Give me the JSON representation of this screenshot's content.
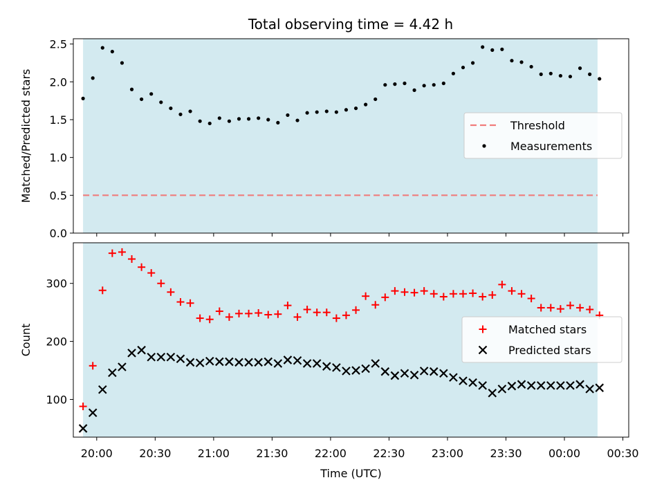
{
  "chart_data": {
    "type": "scatter",
    "title": "Total observing time = 4.42 h",
    "xlabel": "Time (UTC)",
    "x_ticks": [
      "20:00",
      "20:30",
      "21:00",
      "21:30",
      "22:00",
      "22:30",
      "23:00",
      "23:30",
      "00:00",
      "00:30"
    ],
    "xlim": [
      "19:48",
      "00:33"
    ],
    "observing_window": [
      "19:53",
      "00:17"
    ],
    "colors": {
      "observing_window": "#d3eaf0",
      "threshold": "#f07c7c",
      "measurements": "#000000",
      "matched": "#ff0000",
      "predicted": "#000000"
    },
    "panels": [
      {
        "ylabel": "Matched/Predicted stars",
        "ylim": [
          0,
          2.57
        ],
        "y_ticks": [
          "0.0",
          "0.5",
          "1.0",
          "1.5",
          "2.0",
          "2.5"
        ],
        "legend_position": "center-right",
        "threshold": {
          "name": "Threshold",
          "value": 0.5
        },
        "series": [
          {
            "name": "Measurements",
            "marker": "dot",
            "x": [
              "19:53",
              "19:58",
              "20:03",
              "20:08",
              "20:13",
              "20:18",
              "20:23",
              "20:28",
              "20:33",
              "20:38",
              "20:43",
              "20:48",
              "20:53",
              "20:58",
              "21:03",
              "21:08",
              "21:13",
              "21:18",
              "21:23",
              "21:28",
              "21:33",
              "21:38",
              "21:43",
              "21:48",
              "21:53",
              "21:58",
              "22:03",
              "22:08",
              "22:13",
              "22:18",
              "22:23",
              "22:28",
              "22:33",
              "22:38",
              "22:43",
              "22:48",
              "22:53",
              "22:58",
              "23:03",
              "23:08",
              "23:13",
              "23:18",
              "23:23",
              "23:28",
              "23:33",
              "23:38",
              "23:43",
              "23:48",
              "23:53",
              "23:58",
              "00:03",
              "00:08",
              "00:13",
              "00:18"
            ],
            "y": [
              1.78,
              2.05,
              2.45,
              2.4,
              2.25,
              1.9,
              1.77,
              1.84,
              1.73,
              1.65,
              1.57,
              1.61,
              1.48,
              1.45,
              1.52,
              1.48,
              1.51,
              1.51,
              1.52,
              1.5,
              1.46,
              1.56,
              1.49,
              1.59,
              1.6,
              1.61,
              1.6,
              1.63,
              1.65,
              1.7,
              1.77,
              1.96,
              1.97,
              1.98,
              1.89,
              1.95,
              1.96,
              1.98,
              2.11,
              2.19,
              2.25,
              2.46,
              2.42,
              2.43,
              2.28,
              2.26,
              2.2,
              2.1,
              2.11,
              2.08,
              2.07,
              2.18,
              2.1,
              2.04
            ]
          }
        ]
      },
      {
        "ylabel": "Count",
        "ylim": [
          35,
          370
        ],
        "y_ticks": [
          "100",
          "200",
          "300"
        ],
        "legend_position": "center-right",
        "series": [
          {
            "name": "Matched stars",
            "marker": "plus",
            "x": [
              "19:53",
              "19:58",
              "20:03",
              "20:08",
              "20:13",
              "20:18",
              "20:23",
              "20:28",
              "20:33",
              "20:38",
              "20:43",
              "20:48",
              "20:53",
              "20:58",
              "21:03",
              "21:08",
              "21:13",
              "21:18",
              "21:23",
              "21:28",
              "21:33",
              "21:38",
              "21:43",
              "21:48",
              "21:53",
              "21:58",
              "22:03",
              "22:08",
              "22:13",
              "22:18",
              "22:23",
              "22:28",
              "22:33",
              "22:38",
              "22:43",
              "22:48",
              "22:53",
              "22:58",
              "23:03",
              "23:08",
              "23:13",
              "23:18",
              "23:23",
              "23:28",
              "23:33",
              "23:38",
              "23:43",
              "23:48",
              "23:53",
              "23:58",
              "00:03",
              "00:08",
              "00:13",
              "00:18"
            ],
            "y": [
              88,
              158,
              288,
              352,
              354,
              342,
              328,
              318,
              300,
              285,
              268,
              266,
              240,
              238,
              252,
              242,
              248,
              248,
              249,
              246,
              247,
              262,
              242,
              255,
              250,
              250,
              240,
              245,
              254,
              278,
              263,
              276,
              287,
              285,
              284,
              287,
              282,
              277,
              282,
              282,
              283,
              277,
              280,
              298,
              287,
              282,
              274,
              258,
              258,
              256,
              262,
              258,
              255,
              245
            ]
          },
          {
            "name": "Predicted stars",
            "marker": "x",
            "x": [
              "19:53",
              "19:58",
              "20:03",
              "20:08",
              "20:13",
              "20:18",
              "20:23",
              "20:28",
              "20:33",
              "20:38",
              "20:43",
              "20:48",
              "20:53",
              "20:58",
              "21:03",
              "21:08",
              "21:13",
              "21:18",
              "21:23",
              "21:28",
              "21:33",
              "21:38",
              "21:43",
              "21:48",
              "21:53",
              "21:58",
              "22:03",
              "22:08",
              "22:13",
              "22:18",
              "22:23",
              "22:28",
              "22:33",
              "22:38",
              "22:43",
              "22:48",
              "22:53",
              "22:58",
              "23:03",
              "23:08",
              "23:13",
              "23:18",
              "23:23",
              "23:28",
              "23:33",
              "23:38",
              "23:43",
              "23:48",
              "23:53",
              "23:58",
              "00:03",
              "00:08",
              "00:13",
              "00:18"
            ],
            "y": [
              50,
              77,
              117,
              146,
              156,
              180,
              185,
              173,
              173,
              173,
              170,
              164,
              163,
              166,
              165,
              165,
              164,
              164,
              164,
              165,
              162,
              168,
              167,
              162,
              162,
              157,
              155,
              149,
              150,
              153,
              162,
              148,
              141,
              145,
              142,
              149,
              148,
              145,
              138,
              132,
              129,
              124,
              111,
              118,
              123,
              126,
              124,
              124,
              124,
              124,
              124,
              126,
              118,
              120
            ]
          }
        ]
      }
    ]
  }
}
